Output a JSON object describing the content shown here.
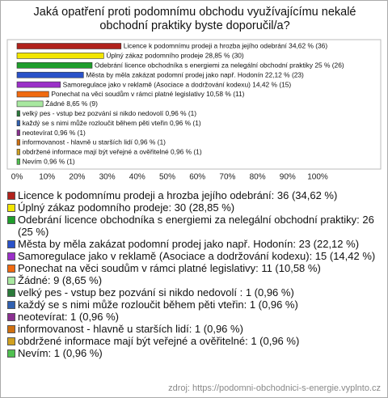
{
  "chart_data": {
    "type": "bar",
    "title": "Jaká opatření proti podomnímu obchodu využívajícímu nekalé obchodní praktiky byste doporučil/a?",
    "bar_labels": [
      "Licence k podomnímu prodeji a hrozba jejího odebrání 34,62 % (36)",
      "Úplný zákaz podomního prodeje 28,85 % (30)",
      "Odebrání licence obchodníka s energiemi za nelegální obchodní praktiky 25 % (26)",
      "Města by měla zakázat podomní prodej jako např. Hodonín 22,12 % (23)",
      "Samoregulace jako v reklamě (Asociace a dodržování kodexu) 14,42 % (15)",
      "Ponechat na věci soudům v rámci platné legislativy 10,58 % (11)",
      "Žádné 8,65 % (9)",
      "velký pes - vstup bez pozvání si nikdo nedovolí  0,96 % (1)",
      "každý se s nimi může rozloučit během pěti vteřin 0,96 % (1)",
      "neotevírat 0,96 % (1)",
      "informovanost - hlavně u starších lidí 0,96 % (1)",
      "obdržené informace mají být veřejné a ověřitelné 0,96 % (1)",
      "Nevím 0,96 % (1)"
    ],
    "legend_labels": [
      "Licence k podomnímu prodeji a hrozba jejího odebrání: 36 (34,62 %)",
      "Úplný zákaz podomního prodeje: 30 (28,85 %)",
      "Odebrání licence obchodníka s energiemi za nelegální obchodní praktiky: 26 (25 %)",
      "Města by měla zakázat podomní prodej jako např. Hodonín: 23 (22,12 %)",
      "Samoregulace jako v reklamě (Asociace a dodržování kodexu): 15 (14,42 %)",
      "Ponechat na věci soudům v rámci platné legislativy: 11 (10,58 %)",
      "Žádné: 9 (8,65 %)",
      "velký pes - vstup bez pozvání si nikdo nedovolí : 1 (0,96 %)",
      "každý se s nimi může rozloučit během pěti vteřin: 1 (0,96 %)",
      "neotevírat: 1 (0,96 %)",
      "informovanost - hlavně u starších lidí: 1 (0,96 %)",
      "obdržené informace mají být veřejné a ověřitelné: 1 (0,96 %)",
      "Nevím: 1 (0,96 %)"
    ],
    "values": [
      34.62,
      28.85,
      25,
      22.12,
      14.42,
      10.58,
      8.65,
      0.96,
      0.96,
      0.96,
      0.96,
      0.96,
      0.96
    ],
    "colors": [
      "#b0221c",
      "#f2e600",
      "#1f9e2c",
      "#2a52c9",
      "#9b30c8",
      "#f06a10",
      "#a8e8a0",
      "#2a7a3a",
      "#3060b0",
      "#8a3090",
      "#d07010",
      "#d0a020",
      "#50c050"
    ],
    "xlim": [
      0,
      100
    ],
    "xticks": [
      {
        "value": 0,
        "label": "0%"
      },
      {
        "value": 10,
        "label": "10%"
      },
      {
        "value": 20,
        "label": "20%"
      },
      {
        "value": 30,
        "label": "30%"
      },
      {
        "value": 40,
        "label": "40%"
      },
      {
        "value": 50,
        "label": "50%"
      },
      {
        "value": 60,
        "label": "60%"
      },
      {
        "value": 70,
        "label": "70%"
      },
      {
        "value": 80,
        "label": "80%"
      },
      {
        "value": 90,
        "label": "90%"
      },
      {
        "value": 100,
        "label": "100%"
      }
    ],
    "source": "zdroj: https://podomni-obchodnici-s-energie.vyplnto.cz"
  }
}
